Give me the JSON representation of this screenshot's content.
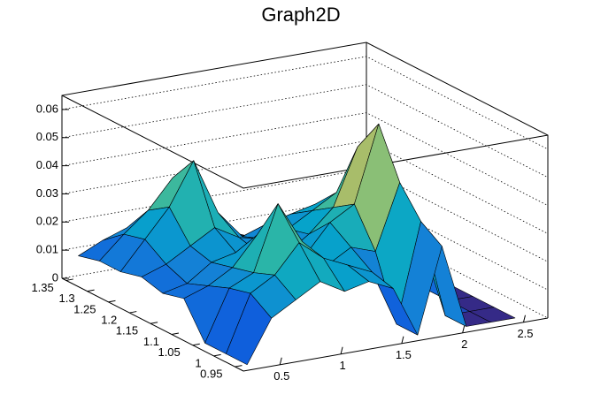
{
  "chart_data": {
    "type": "surface",
    "title": "Graph2D",
    "x": [
      0.3,
      0.5,
      0.7,
      0.9,
      1.1,
      1.3,
      1.5,
      1.7,
      1.9,
      2.1,
      2.3,
      2.5
    ],
    "y": [
      0.95,
      1.0,
      1.05,
      1.1,
      1.15,
      1.2,
      1.25,
      1.3,
      1.35
    ],
    "values": [
      [
        0,
        0.015,
        0.02,
        0.025,
        0.02,
        0.022,
        0.018,
        0,
        0.03,
        0,
        0,
        0
      ],
      [
        0,
        0.02,
        0.025,
        0.035,
        0.028,
        0.024,
        0.02,
        0,
        0.035,
        0,
        0,
        0
      ],
      [
        0,
        0.018,
        0.022,
        0.045,
        0.03,
        0.02,
        0.025,
        0.022,
        0.045,
        0.02,
        0,
        0
      ],
      [
        0.012,
        0.015,
        0.02,
        0.03,
        0.022,
        0.02,
        0.03,
        0.035,
        0.062,
        0.025,
        0,
        0
      ],
      [
        0.01,
        0.012,
        0.018,
        0.02,
        0.018,
        0.016,
        0.022,
        0.03,
        0.05,
        0.022,
        0,
        0
      ],
      [
        0.012,
        0.015,
        0.02,
        0.025,
        0.02,
        0.018,
        0.02,
        0.025,
        0.03,
        0.02,
        0,
        0
      ],
      [
        0.01,
        0.02,
        0.03,
        0.045,
        0.025,
        0.015,
        0.018,
        0.02,
        0.022,
        0.015,
        0,
        0
      ],
      [
        0.01,
        0.018,
        0.025,
        0.035,
        0.02,
        0.012,
        0.01,
        0.012,
        0.015,
        0,
        0,
        0
      ],
      [
        0.008,
        0.012,
        0.015,
        0.015,
        0.012,
        0.01,
        0.008,
        0,
        0,
        0,
        0,
        0
      ]
    ],
    "xlim": [
      0.2,
      2.7
    ],
    "ylim": [
      0.93,
      1.36
    ],
    "zlim": [
      0,
      0.065
    ],
    "xticks": [
      0.5,
      1,
      1.5,
      2,
      2.5
    ],
    "yticks": [
      0.95,
      1,
      1.05,
      1.1,
      1.15,
      1.2,
      1.25,
      1.3,
      1.35
    ],
    "zticks": [
      0,
      0.01,
      0.02,
      0.03,
      0.04,
      0.05,
      0.06
    ],
    "grid": true
  }
}
